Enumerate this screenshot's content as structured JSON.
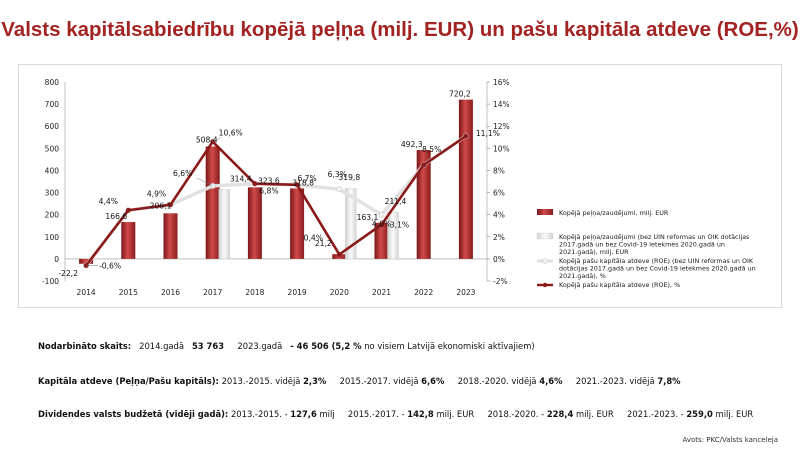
{
  "title": "Valsts kapitālsabiedrību kopējā peļņa (milj. EUR) un pašu kapitāla atdeve (ROE,%)",
  "chart_data": {
    "type": "bar-line-combo",
    "categories": [
      "2014",
      "2015",
      "2016",
      "2017",
      "2018",
      "2019",
      "2020",
      "2021",
      "2022",
      "2023"
    ],
    "left_axis": {
      "min": -100,
      "max": 800,
      "step": 100,
      "ticks": [
        "-100",
        "0",
        "100",
        "200",
        "300",
        "400",
        "500",
        "600",
        "700",
        "800"
      ]
    },
    "right_axis": {
      "min": -2,
      "max": 16,
      "step": 2,
      "ticks": [
        "-2%",
        "0%",
        "2%",
        "4%",
        "6%",
        "8%",
        "10%",
        "12%",
        "14%",
        "16%"
      ]
    },
    "series": [
      {
        "name": "Kopējā peļņa/zaudējumi, milj. EUR",
        "kind": "bar",
        "color": "#b83030",
        "values": [
          -22.2,
          166.6,
          206.1,
          508.4,
          323.6,
          318.8,
          21.2,
          163.1,
          492.3,
          720.2
        ],
        "labels": [
          "-22,2",
          "166,6",
          "206,1",
          "508,4",
          "323,6",
          "318,8",
          "21,2",
          "163,1",
          "492,3",
          "720,2"
        ]
      },
      {
        "name": "Kopējā peļņa/zaudējumi (bez UIN reformas un OIK dotācijas 2017.gadā un bez Covid-19 ietekmes 2020.gadā un 2021.gadā), milj. EUR",
        "kind": "bar-adjusted",
        "color": "#e8e8e8",
        "values": [
          null,
          null,
          null,
          314.4,
          null,
          null,
          319.8,
          211.4,
          null,
          null
        ],
        "labels": [
          "",
          "",
          "",
          "314,4",
          "",
          "",
          "319,8",
          "211,4",
          "",
          ""
        ]
      },
      {
        "name": "Kopējā pašu kapitāla atdeve (ROE) (bez UIN reformas un OIK dotācijas 2017.gadā un bez Covid-19 ietekmes 2020.gadā un 2021.gadā), %",
        "kind": "line-adjusted",
        "color": "#e0e0e0",
        "values": [
          -0.6,
          4.4,
          4.9,
          6.6,
          6.8,
          6.7,
          6.3,
          4.0,
          8.5,
          11.1
        ],
        "labels": [
          "",
          "",
          "",
          "6,6%",
          "",
          "",
          "6,3%",
          "4,0%",
          "",
          ""
        ]
      },
      {
        "name": "Kopējā pašu kapitāla atdeve (ROE), %",
        "kind": "line",
        "color": "#8b1a1a",
        "values": [
          -0.6,
          4.4,
          4.9,
          10.6,
          6.8,
          6.7,
          0.4,
          3.1,
          8.5,
          11.1
        ],
        "labels": [
          "-0,6%",
          "4,4%",
          "4,9%",
          "10,6%",
          "6,8%",
          "6,7%",
          "0,4%",
          "3,1%",
          "8,5%",
          "11,1%"
        ]
      }
    ]
  },
  "info": {
    "employees": {
      "label": "Nodarbināto skaits:",
      "text_a": "2014.gadā",
      "value_a": "53 763",
      "text_b": "2023.gadā",
      "value_b": "- 46 506 (5,2 %",
      "text_c": "no visiem Latvijā ekonomiski aktīvajiem)"
    },
    "roe": {
      "label": "Kapitāla atdeve (Peļņa/Pašu kapitāls):",
      "p1": "2013.-2015. vidējā",
      "v1": "2,3%",
      "p2": "2015.-2017. vidējā",
      "v2": "6,6%",
      "p3": "2018.-2020. vidējā",
      "v3": "4,6%",
      "p4": "2021.-2023. vidējā",
      "v4": "7,8%"
    },
    "dividends": {
      "label": "Dividendes valsts budžetā (vidēji gadā):",
      "p1": "2013.-2015. -",
      "v1": "127,6",
      "u1": "milj",
      "p2": "2015.-2017. -",
      "v2": "142,8",
      "u2": "milj. EUR",
      "p3": "2018.-2020. -",
      "v3": "228,4",
      "u3": "milj. EUR",
      "p4": "2021.-2023. -",
      "v4": "259,0",
      "u4": "milj. EUR"
    }
  },
  "source": "Avots: PKC/Valsts kanceleja"
}
